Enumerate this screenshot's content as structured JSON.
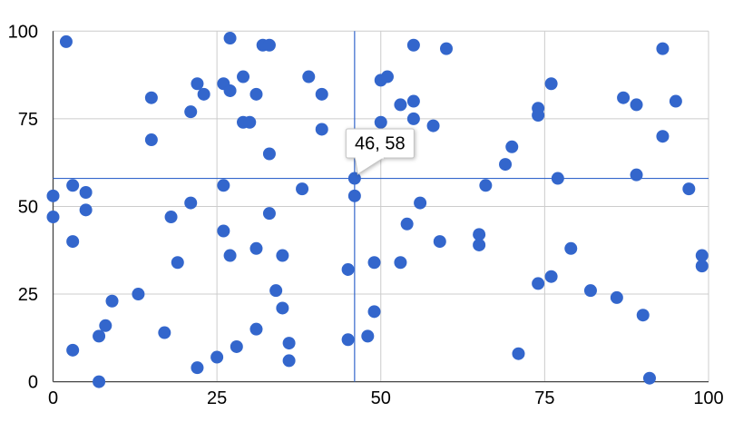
{
  "chart_data": {
    "type": "scatter",
    "title": "",
    "xlabel": "",
    "ylabel": "",
    "xlim": [
      0,
      100
    ],
    "ylim": [
      0,
      100
    ],
    "x_ticks": [
      0,
      25,
      50,
      75,
      100
    ],
    "y_ticks": [
      0,
      25,
      50,
      75,
      100
    ],
    "grid": true,
    "legend": "none",
    "series_color": "#3366CC",
    "gridline_color": "#CCCCCC",
    "axis_color": "#444444",
    "label_color": "#000000",
    "tooltip_border_color": "#C4C4C4",
    "tooltip_background": "#FFFFFF",
    "point_radius": 7,
    "points": [
      [
        0,
        47
      ],
      [
        0,
        53
      ],
      [
        2,
        97
      ],
      [
        3,
        9
      ],
      [
        3,
        40
      ],
      [
        3,
        56
      ],
      [
        5,
        49
      ],
      [
        5,
        54
      ],
      [
        7,
        0
      ],
      [
        7,
        13
      ],
      [
        8,
        16
      ],
      [
        9,
        23
      ],
      [
        13,
        25
      ],
      [
        15,
        69
      ],
      [
        15,
        81
      ],
      [
        17,
        14
      ],
      [
        18,
        47
      ],
      [
        19,
        34
      ],
      [
        21,
        51
      ],
      [
        21,
        77
      ],
      [
        22,
        4
      ],
      [
        22,
        85
      ],
      [
        23,
        82
      ],
      [
        25,
        7
      ],
      [
        26,
        43
      ],
      [
        26,
        56
      ],
      [
        26,
        85
      ],
      [
        27,
        36
      ],
      [
        27,
        83
      ],
      [
        27,
        98
      ],
      [
        28,
        10
      ],
      [
        29,
        74
      ],
      [
        29,
        87
      ],
      [
        30,
        74
      ],
      [
        31,
        15
      ],
      [
        31,
        38
      ],
      [
        31,
        82
      ],
      [
        32,
        96
      ],
      [
        33,
        48
      ],
      [
        33,
        65
      ],
      [
        33,
        96
      ],
      [
        34,
        26
      ],
      [
        35,
        21
      ],
      [
        35,
        36
      ],
      [
        36,
        6
      ],
      [
        36,
        11
      ],
      [
        38,
        55
      ],
      [
        39,
        87
      ],
      [
        41,
        72
      ],
      [
        41,
        82
      ],
      [
        45,
        12
      ],
      [
        45,
        32
      ],
      [
        46,
        53
      ],
      [
        46,
        58
      ],
      [
        48,
        13
      ],
      [
        49,
        20
      ],
      [
        49,
        34
      ],
      [
        50,
        74
      ],
      [
        50,
        86
      ],
      [
        51,
        87
      ],
      [
        53,
        34
      ],
      [
        53,
        79
      ],
      [
        54,
        45
      ],
      [
        55,
        75
      ],
      [
        55,
        80
      ],
      [
        55,
        96
      ],
      [
        56,
        51
      ],
      [
        58,
        73
      ],
      [
        59,
        40
      ],
      [
        60,
        95
      ],
      [
        65,
        39
      ],
      [
        65,
        42
      ],
      [
        66,
        56
      ],
      [
        69,
        62
      ],
      [
        70,
        67
      ],
      [
        71,
        8
      ],
      [
        74,
        28
      ],
      [
        74,
        76
      ],
      [
        74,
        78
      ],
      [
        76,
        30
      ],
      [
        76,
        85
      ],
      [
        77,
        58
      ],
      [
        79,
        38
      ],
      [
        82,
        26
      ],
      [
        86,
        24
      ],
      [
        87,
        81
      ],
      [
        89,
        59
      ],
      [
        89,
        79
      ],
      [
        90,
        19
      ],
      [
        91,
        1
      ],
      [
        93,
        70
      ],
      [
        93,
        95
      ],
      [
        95,
        80
      ],
      [
        97,
        55
      ],
      [
        99,
        33
      ],
      [
        99,
        36
      ]
    ],
    "highlight": {
      "x": 46,
      "y": 58,
      "tooltip": "46, 58"
    }
  }
}
